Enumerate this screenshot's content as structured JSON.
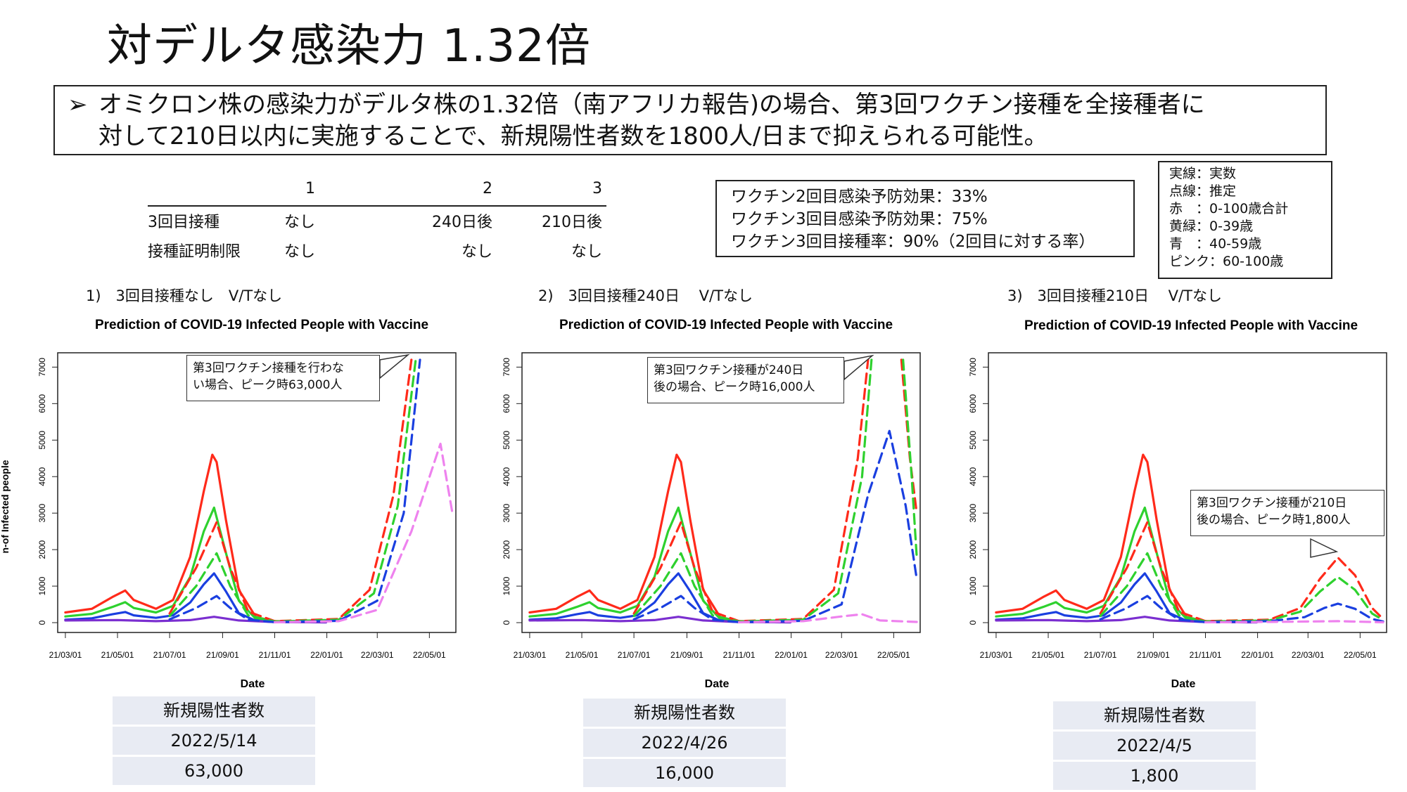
{
  "title": "対デルタ感染力 1.32倍",
  "headline": {
    "arrow": "➢",
    "line1": "オミクロン株の感染力がデルタ株の1.32倍（南アフリカ報告)の場合、第3回ワクチン接種を全接種者に",
    "line2": "対して210日以内に実施することで、新規陽性者数を1800人/日まで抑えられる可能性。"
  },
  "scenario_table": {
    "headers": [
      "",
      "1",
      "2",
      "3"
    ],
    "rows": [
      [
        "3回目接種",
        "なし",
        "240日後",
        "210日後"
      ],
      [
        "接種証明制限",
        "なし",
        "なし",
        "なし"
      ]
    ]
  },
  "assumptions": [
    "ワクチン2回目感染予防効果：33%",
    "ワクチン3回目感染予防効果：75%",
    "ワクチン3回目接種率：90%（2回目に対する率）"
  ],
  "legend": [
    "実線：実数",
    "点線：推定",
    "赤　：0-100歳合計",
    "黄緑：0-39歳",
    "青　：40-59歳",
    "ピンク：60-100歳"
  ],
  "colors": {
    "red": "#ff2a1a",
    "green": "#2ed12e",
    "blue": "#1a3fe0",
    "pink": "#ee82ee",
    "purple": "#7b2fd0"
  },
  "panels": [
    {
      "label": "1)　3回目接種なし　V/Tなし",
      "callout": [
        "第3回ワクチン接種を行わな",
        "い場合、ピーク時63,000人"
      ],
      "result": {
        "header": "新規陽性者数",
        "date": "2022/5/14",
        "value": "63,000"
      }
    },
    {
      "label": "2)　3回目接種240日　 V/Tなし",
      "callout": [
        "第3回ワクチン接種が240日",
        "後の場合、ピーク時16,000人"
      ],
      "result": {
        "header": "新規陽性者数",
        "date": "2022/4/26",
        "value": "16,000"
      }
    },
    {
      "label": "3)　3回目接種210日　 V/Tなし",
      "callout": [
        "第3回ワクチン接種が210日",
        "後の場合、ピーク時1,800人"
      ],
      "result": {
        "header": "新規陽性者数",
        "date": "2022/4/5",
        "value": "1,800"
      }
    }
  ],
  "chart_data": [
    {
      "type": "line",
      "title": "Prediction of COVID-19 Infected People with Vaccine",
      "xlabel": "Date",
      "ylabel": "n-of Infected people",
      "x_ticks": [
        "21/03/01",
        "21/05/01",
        "21/07/01",
        "21/09/01",
        "21/11/01",
        "22/01/01",
        "22/03/01",
        "22/05/01"
      ],
      "y_ticks": [
        0,
        1000,
        2000,
        3000,
        4000,
        5000,
        6000,
        7000
      ],
      "ylim": [
        0,
        7200
      ],
      "xlim": [
        "2021-02-20",
        "2022-06-01"
      ],
      "actual_series": [
        {
          "name": "red",
          "color": "#ff2a1a",
          "points": [
            [
              "2021-03-01",
              280
            ],
            [
              "2021-04-01",
              380
            ],
            [
              "2021-04-25",
              700
            ],
            [
              "2021-05-10",
              880
            ],
            [
              "2021-05-20",
              620
            ],
            [
              "2021-06-15",
              380
            ],
            [
              "2021-07-05",
              620
            ],
            [
              "2021-07-25",
              1800
            ],
            [
              "2021-08-10",
              3600
            ],
            [
              "2021-08-20",
              4600
            ],
            [
              "2021-08-25",
              4400
            ],
            [
              "2021-09-05",
              2800
            ],
            [
              "2021-09-20",
              900
            ],
            [
              "2021-10-10",
              150
            ],
            [
              "2021-11-01",
              40
            ],
            [
              "2021-12-31",
              20
            ]
          ]
        },
        {
          "name": "green",
          "color": "#2ed12e",
          "points": [
            [
              "2021-03-01",
              170
            ],
            [
              "2021-04-01",
              240
            ],
            [
              "2021-04-25",
              430
            ],
            [
              "2021-05-10",
              560
            ],
            [
              "2021-05-20",
              400
            ],
            [
              "2021-06-15",
              280
            ],
            [
              "2021-07-05",
              460
            ],
            [
              "2021-07-25",
              1250
            ],
            [
              "2021-08-10",
              2500
            ],
            [
              "2021-08-22",
              3150
            ],
            [
              "2021-09-05",
              1900
            ],
            [
              "2021-09-20",
              600
            ],
            [
              "2021-10-10",
              100
            ],
            [
              "2021-11-01",
              30
            ],
            [
              "2021-12-31",
              15
            ]
          ]
        },
        {
          "name": "blue",
          "color": "#1a3fe0",
          "points": [
            [
              "2021-03-01",
              80
            ],
            [
              "2021-04-01",
              120
            ],
            [
              "2021-04-25",
              230
            ],
            [
              "2021-05-10",
              290
            ],
            [
              "2021-05-20",
              200
            ],
            [
              "2021-06-15",
              130
            ],
            [
              "2021-07-05",
              200
            ],
            [
              "2021-07-25",
              550
            ],
            [
              "2021-08-10",
              1050
            ],
            [
              "2021-08-22",
              1350
            ],
            [
              "2021-09-05",
              850
            ],
            [
              "2021-09-20",
              260
            ],
            [
              "2021-10-10",
              50
            ],
            [
              "2021-11-01",
              15
            ],
            [
              "2021-12-31",
              10
            ]
          ]
        },
        {
          "name": "purple",
          "color": "#7b2fd0",
          "points": [
            [
              "2021-03-01",
              60
            ],
            [
              "2021-05-01",
              70
            ],
            [
              "2021-06-15",
              40
            ],
            [
              "2021-07-25",
              70
            ],
            [
              "2021-08-22",
              160
            ],
            [
              "2021-09-20",
              60
            ],
            [
              "2021-11-01",
              15
            ],
            [
              "2021-12-31",
              10
            ]
          ]
        }
      ]
    },
    {
      "type": "line",
      "title": "Prediction of COVID-19 Infected People with Vaccine",
      "xlabel": "Date",
      "ylabel": "",
      "x_ticks": [
        "21/03/01",
        "21/05/01",
        "21/07/01",
        "21/09/01",
        "21/11/01",
        "22/01/01",
        "22/03/01",
        "22/05/01"
      ],
      "y_ticks": [
        0,
        1000,
        2000,
        3000,
        4000,
        5000,
        6000,
        7000
      ],
      "ylim": [
        0,
        7200
      ],
      "xlim": [
        "2021-02-20",
        "2022-06-01"
      ]
    },
    {
      "type": "line",
      "title": "Prediction of COVID-19 Infected People with Vaccine",
      "xlabel": "Date",
      "ylabel": "",
      "x_ticks": [
        "21/03/01",
        "21/05/01",
        "21/07/01",
        "21/09/01",
        "21/11/01",
        "22/01/01",
        "22/03/01",
        "22/05/01"
      ],
      "y_ticks": [
        0,
        1000,
        2000,
        3000,
        4000,
        5000,
        6000,
        7000
      ],
      "ylim": [
        0,
        7200
      ],
      "xlim": [
        "2021-02-20",
        "2022-06-01"
      ]
    }
  ],
  "predicted_series": [
    [
      {
        "name": "red-est",
        "color": "#ff2a1a",
        "points": [
          [
            "2021-07-01",
            250
          ],
          [
            "2021-08-01",
            1500
          ],
          [
            "2021-08-25",
            2750
          ],
          [
            "2021-09-10",
            1500
          ],
          [
            "2021-10-01",
            300
          ],
          [
            "2021-11-01",
            40
          ],
          [
            "2022-01-15",
            100
          ],
          [
            "2022-02-20",
            900
          ],
          [
            "2022-03-20",
            3500
          ],
          [
            "2022-04-10",
            7200
          ]
        ]
      },
      {
        "name": "green-est",
        "color": "#2ed12e",
        "points": [
          [
            "2021-07-01",
            180
          ],
          [
            "2021-08-01",
            1000
          ],
          [
            "2021-08-25",
            1900
          ],
          [
            "2021-09-10",
            1000
          ],
          [
            "2021-10-01",
            200
          ],
          [
            "2021-11-01",
            30
          ],
          [
            "2022-01-15",
            80
          ],
          [
            "2022-02-25",
            800
          ],
          [
            "2022-03-25",
            3200
          ],
          [
            "2022-04-15",
            7200
          ]
        ]
      },
      {
        "name": "blue-est",
        "color": "#1a3fe0",
        "points": [
          [
            "2021-07-01",
            90
          ],
          [
            "2021-08-01",
            400
          ],
          [
            "2021-08-25",
            730
          ],
          [
            "2021-09-10",
            400
          ],
          [
            "2021-10-01",
            80
          ],
          [
            "2021-11-01",
            15
          ],
          [
            "2022-01-15",
            50
          ],
          [
            "2022-03-01",
            600
          ],
          [
            "2022-04-01",
            3000
          ],
          [
            "2022-04-20",
            7200
          ]
        ]
      },
      {
        "name": "pink-est",
        "color": "#ee82ee",
        "points": [
          [
            "2021-11-01",
            10
          ],
          [
            "2022-01-15",
            40
          ],
          [
            "2022-03-01",
            350
          ],
          [
            "2022-04-10",
            2500
          ],
          [
            "2022-05-14",
            4900
          ],
          [
            "2022-05-28",
            3000
          ]
        ]
      }
    ],
    [
      {
        "name": "red-est",
        "color": "#ff2a1a",
        "points": [
          [
            "2021-07-01",
            250
          ],
          [
            "2021-08-01",
            1500
          ],
          [
            "2021-08-25",
            2750
          ],
          [
            "2021-09-10",
            1500
          ],
          [
            "2021-10-01",
            300
          ],
          [
            "2021-11-01",
            40
          ],
          [
            "2022-01-15",
            100
          ],
          [
            "2022-02-20",
            900
          ],
          [
            "2022-03-20",
            4500
          ],
          [
            "2022-04-01",
            7200
          ]
        ]
      },
      {
        "name": "red-est-fall",
        "color": "#ff2a1a",
        "points": [
          [
            "2022-05-10",
            7200
          ],
          [
            "2022-05-20",
            4500
          ],
          [
            "2022-05-28",
            3000
          ]
        ]
      },
      {
        "name": "green-est",
        "color": "#2ed12e",
        "points": [
          [
            "2021-07-01",
            180
          ],
          [
            "2021-08-01",
            1000
          ],
          [
            "2021-08-25",
            1900
          ],
          [
            "2021-09-10",
            1000
          ],
          [
            "2021-10-01",
            200
          ],
          [
            "2021-11-01",
            30
          ],
          [
            "2022-01-15",
            80
          ],
          [
            "2022-02-25",
            800
          ],
          [
            "2022-03-25",
            4000
          ],
          [
            "2022-04-05",
            7200
          ]
        ]
      },
      {
        "name": "green-est-fall",
        "color": "#2ed12e",
        "points": [
          [
            "2022-05-12",
            7200
          ],
          [
            "2022-05-22",
            4000
          ],
          [
            "2022-05-28",
            1800
          ]
        ]
      },
      {
        "name": "blue-est",
        "color": "#1a3fe0",
        "points": [
          [
            "2021-07-01",
            90
          ],
          [
            "2021-08-01",
            400
          ],
          [
            "2021-08-25",
            730
          ],
          [
            "2021-09-10",
            400
          ],
          [
            "2021-10-01",
            80
          ],
          [
            "2021-11-01",
            15
          ],
          [
            "2022-01-15",
            50
          ],
          [
            "2022-03-01",
            500
          ],
          [
            "2022-04-01",
            3500
          ],
          [
            "2022-04-26",
            5250
          ],
          [
            "2022-05-15",
            3200
          ],
          [
            "2022-05-28",
            1200
          ]
        ]
      },
      {
        "name": "pink-est",
        "color": "#ee82ee",
        "points": [
          [
            "2021-11-01",
            10
          ],
          [
            "2022-01-15",
            40
          ],
          [
            "2022-03-05",
            180
          ],
          [
            "2022-03-25",
            230
          ],
          [
            "2022-04-15",
            60
          ],
          [
            "2022-05-28",
            20
          ]
        ]
      }
    ],
    [
      {
        "name": "red-est",
        "color": "#ff2a1a",
        "points": [
          [
            "2021-07-01",
            250
          ],
          [
            "2021-08-01",
            1500
          ],
          [
            "2021-08-25",
            2750
          ],
          [
            "2021-09-10",
            1500
          ],
          [
            "2021-10-01",
            300
          ],
          [
            "2021-11-01",
            40
          ],
          [
            "2022-01-15",
            80
          ],
          [
            "2022-02-20",
            400
          ],
          [
            "2022-03-15",
            1200
          ],
          [
            "2022-04-05",
            1780
          ],
          [
            "2022-04-25",
            1300
          ],
          [
            "2022-05-15",
            400
          ],
          [
            "2022-05-28",
            100
          ]
        ]
      },
      {
        "name": "green-est",
        "color": "#2ed12e",
        "points": [
          [
            "2021-07-01",
            180
          ],
          [
            "2021-08-01",
            1000
          ],
          [
            "2021-08-25",
            1900
          ],
          [
            "2021-09-10",
            1000
          ],
          [
            "2021-10-01",
            200
          ],
          [
            "2021-11-01",
            30
          ],
          [
            "2022-01-15",
            60
          ],
          [
            "2022-02-20",
            300
          ],
          [
            "2022-03-15",
            850
          ],
          [
            "2022-04-05",
            1250
          ],
          [
            "2022-04-25",
            900
          ],
          [
            "2022-05-15",
            250
          ],
          [
            "2022-05-28",
            70
          ]
        ]
      },
      {
        "name": "blue-est",
        "color": "#1a3fe0",
        "points": [
          [
            "2021-07-01",
            90
          ],
          [
            "2021-08-01",
            400
          ],
          [
            "2021-08-25",
            730
          ],
          [
            "2021-09-10",
            400
          ],
          [
            "2021-10-01",
            80
          ],
          [
            "2021-11-01",
            15
          ],
          [
            "2022-01-15",
            40
          ],
          [
            "2022-02-25",
            150
          ],
          [
            "2022-03-20",
            400
          ],
          [
            "2022-04-05",
            520
          ],
          [
            "2022-04-25",
            380
          ],
          [
            "2022-05-15",
            100
          ],
          [
            "2022-05-28",
            30
          ]
        ]
      },
      {
        "name": "pink-est",
        "color": "#ee82ee",
        "points": [
          [
            "2021-11-01",
            10
          ],
          [
            "2022-01-15",
            20
          ],
          [
            "2022-03-01",
            30
          ],
          [
            "2022-04-05",
            40
          ],
          [
            "2022-05-28",
            10
          ]
        ]
      }
    ]
  ]
}
